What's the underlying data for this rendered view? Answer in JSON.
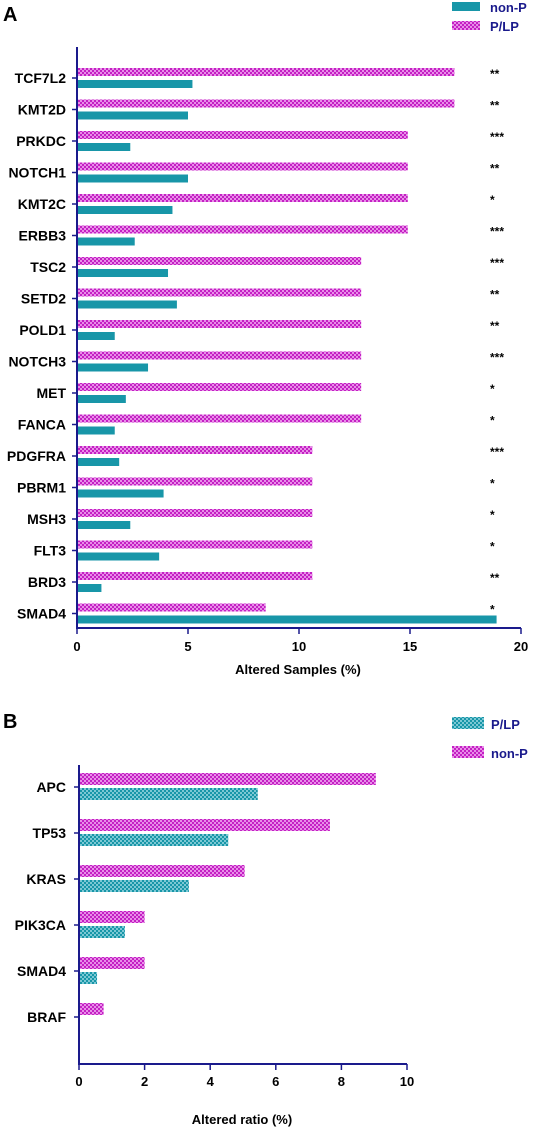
{
  "colors": {
    "teal": "#1896a8",
    "magenta": "#c420c4",
    "axis": "#1a1a8c"
  },
  "chart_data": [
    {
      "type": "bar",
      "orientation": "horizontal",
      "panel": "A",
      "xlabel": "Altered Samples (%)",
      "xlim": [
        0,
        20
      ],
      "xticks": [
        "0",
        "5",
        "10",
        "15",
        "20"
      ],
      "legend": [
        {
          "name": "non-P",
          "color": "#1896a8",
          "pattern": "solid"
        },
        {
          "name": "P/LP",
          "color": "#c420c4",
          "pattern": "checker"
        }
      ],
      "categories": [
        "TCF7L2",
        "KMT2D",
        "PRKDC",
        "NOTCH1",
        "KMT2C",
        "ERBB3",
        "TSC2",
        "SETD2",
        "POLD1",
        "NOTCH3",
        "MET",
        "FANCA",
        "PDGFRA",
        "PBRM1",
        "MSH3",
        "FLT3",
        "BRD3",
        "SMAD4"
      ],
      "significance": [
        "**",
        "**",
        "***",
        "**",
        "*",
        "***",
        "***",
        "**",
        "**",
        "***",
        "*",
        "*",
        "***",
        "*",
        "*",
        "*",
        "**",
        "*"
      ],
      "series": [
        {
          "name": "P/LP",
          "values": [
            17.0,
            17.0,
            14.9,
            14.9,
            14.9,
            14.9,
            12.8,
            12.8,
            12.8,
            12.8,
            12.8,
            12.8,
            10.6,
            10.6,
            10.6,
            10.6,
            10.6,
            8.5
          ]
        },
        {
          "name": "non-P",
          "values": [
            5.2,
            5.0,
            2.4,
            5.0,
            4.3,
            2.6,
            4.1,
            4.5,
            1.7,
            3.2,
            2.2,
            1.7,
            1.9,
            3.9,
            2.4,
            3.7,
            1.1,
            18.9
          ]
        }
      ]
    },
    {
      "type": "bar",
      "orientation": "horizontal",
      "panel": "B",
      "xlabel": "Altered ratio (%)",
      "xlim": [
        0,
        10
      ],
      "xticks": [
        "0",
        "2",
        "4",
        "6",
        "8",
        "10"
      ],
      "legend": [
        {
          "name": "P/LP",
          "color": "#1896a8",
          "pattern": "checker"
        },
        {
          "name": "non-P",
          "color": "#c420c4",
          "pattern": "checker"
        }
      ],
      "categories": [
        "APC",
        "TP53",
        "KRAS",
        "PIK3CA",
        "SMAD4",
        "BRAF"
      ],
      "series": [
        {
          "name": "non-P",
          "values": [
            9.05,
            7.65,
            5.05,
            2.0,
            2.0,
            0.75
          ]
        },
        {
          "name": "P/LP",
          "values": [
            5.45,
            4.55,
            3.35,
            1.4,
            0.55,
            0
          ]
        }
      ]
    }
  ]
}
